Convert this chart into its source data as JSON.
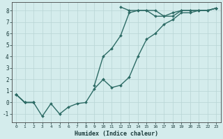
{
  "title": "",
  "xlabel": "Humidex (Indice chaleur)",
  "ylabel": "",
  "xlim": [
    -0.5,
    23.5
  ],
  "ylim": [
    -1.7,
    8.7
  ],
  "xticks": [
    0,
    1,
    2,
    3,
    4,
    5,
    6,
    7,
    8,
    9,
    10,
    11,
    12,
    13,
    14,
    15,
    16,
    17,
    18,
    19,
    20,
    21,
    22,
    23
  ],
  "yticks": [
    -1,
    0,
    1,
    2,
    3,
    4,
    5,
    6,
    7,
    8
  ],
  "line_color": "#2d6b65",
  "bg_color": "#d4ecec",
  "grid_color": "#b8d4d4",
  "series": [
    {
      "x": [
        0,
        1,
        2,
        3,
        4,
        5,
        6,
        7,
        8,
        9,
        10,
        11,
        12,
        13,
        14,
        15,
        16,
        17,
        18,
        19,
        20,
        21,
        22,
        23
      ],
      "y": [
        0.7,
        0.0,
        0.0,
        null,
        null,
        null,
        null,
        null,
        null,
        null,
        2.0,
        null,
        8.3,
        8.0,
        8.0,
        8.0,
        8.0,
        7.5,
        7.5,
        8.0,
        8.0,
        8.0,
        8.0,
        8.2
      ],
      "marker": "D",
      "markersize": 2.0,
      "linewidth": 1.0
    },
    {
      "x": [
        0,
        1,
        2,
        3,
        4,
        5,
        6,
        7,
        8,
        9,
        10,
        11,
        12,
        13,
        14,
        15,
        16,
        17,
        18,
        19,
        20,
        21,
        22,
        23
      ],
      "y": [
        0.7,
        0.0,
        0.0,
        null,
        null,
        null,
        null,
        null,
        null,
        1.5,
        4.0,
        4.7,
        5.8,
        7.8,
        8.0,
        8.0,
        7.5,
        7.5,
        7.8,
        8.0,
        8.0,
        8.0,
        8.0,
        8.2
      ],
      "marker": "D",
      "markersize": 2.0,
      "linewidth": 1.0
    },
    {
      "x": [
        0,
        1,
        2,
        3,
        4,
        5,
        6,
        7,
        8,
        9,
        10,
        11,
        12,
        13,
        14,
        15,
        16,
        17,
        18,
        19,
        20,
        21,
        22,
        23
      ],
      "y": [
        0.7,
        0.0,
        0.0,
        -1.2,
        -0.1,
        -1.0,
        -0.4,
        -0.1,
        0.0,
        1.2,
        2.0,
        1.3,
        1.5,
        2.2,
        4.0,
        5.5,
        6.0,
        6.8,
        7.2,
        7.8,
        7.8,
        8.0,
        8.0,
        8.2
      ],
      "marker": "D",
      "markersize": 2.0,
      "linewidth": 1.0
    }
  ]
}
